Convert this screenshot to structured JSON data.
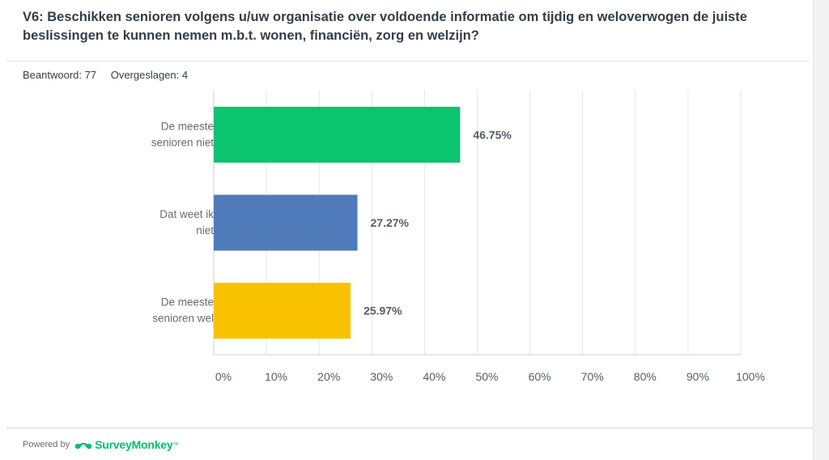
{
  "question": "V6: Beschikken senioren volgens u/uw organisatie over voldoende informatie om tijdig en weloverwogen de juiste beslissingen te kunnen nemen m.b.t. wonen, financiën, zorg en welzijn?",
  "summary": {
    "answered_label": "Beantwoord: 77",
    "skipped_label": "Overgeslagen: 4"
  },
  "footer": {
    "powered_by": "Powered by",
    "brand": "SurveyMonkey",
    "brand_mark": "™",
    "icon": "surveymonkey-logo-icon"
  },
  "chart_data": {
    "type": "bar",
    "orientation": "horizontal",
    "categories": [
      [
        "De meeste",
        "senioren niet"
      ],
      [
        "Dat weet ik",
        "niet"
      ],
      [
        "De meeste",
        "senioren wel"
      ]
    ],
    "values": [
      46.75,
      27.27,
      25.97
    ],
    "value_labels": [
      "46.75%",
      "27.27%",
      "25.97%"
    ],
    "colors": [
      "#0cc36e",
      "#507bba",
      "#f8c200"
    ],
    "xlim": [
      0,
      100
    ],
    "xticks": [
      0,
      10,
      20,
      30,
      40,
      50,
      60,
      70,
      80,
      90,
      100
    ],
    "xtick_labels": [
      "0%",
      "10%",
      "20%",
      "30%",
      "40%",
      "50%",
      "60%",
      "70%",
      "80%",
      "90%",
      "100%"
    ],
    "grid": true,
    "title": "",
    "xlabel": "",
    "ylabel": ""
  }
}
